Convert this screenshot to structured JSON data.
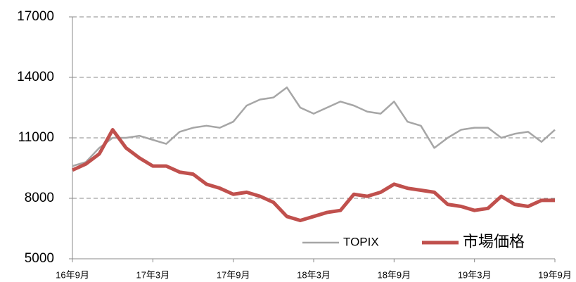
{
  "chart_data": {
    "type": "line",
    "x": [
      "16年9月",
      null,
      null,
      null,
      null,
      null,
      "17年3月",
      null,
      null,
      null,
      null,
      null,
      "17年9月",
      null,
      null,
      null,
      null,
      null,
      "18年3月",
      null,
      null,
      null,
      null,
      null,
      "18年9月",
      null,
      null,
      null,
      null,
      null,
      "19年3月",
      null,
      null,
      null,
      null,
      null,
      "19年9月"
    ],
    "series": [
      {
        "name": "TOPIX",
        "color": "#a6a6a6",
        "values": [
          9600,
          9800,
          10500,
          11000,
          11000,
          11100,
          10900,
          10700,
          11300,
          11500,
          11600,
          11500,
          11800,
          12600,
          12900,
          13000,
          13500,
          12500,
          12200,
          12500,
          12800,
          12600,
          12300,
          12200,
          12800,
          11800,
          11600,
          10500,
          11000,
          11400,
          11500,
          11500,
          11000,
          11200,
          11300,
          10800,
          11400
        ]
      },
      {
        "name": "市場価格",
        "color": "#c0504d",
        "values": [
          9400,
          9700,
          10200,
          11400,
          10500,
          10000,
          9600,
          9600,
          9300,
          9200,
          8700,
          8500,
          8200,
          8300,
          8100,
          7800,
          7100,
          6900,
          7100,
          7300,
          7400,
          8200,
          8100,
          8300,
          8700,
          8500,
          8400,
          8300,
          7700,
          7600,
          7400,
          7500,
          8100,
          7700,
          7600,
          7900,
          7900
        ]
      }
    ],
    "ylim": [
      5000,
      17000
    ],
    "yticks": [
      5000,
      8000,
      11000,
      14000,
      17000
    ],
    "grid": true,
    "legend": "lower right"
  }
}
